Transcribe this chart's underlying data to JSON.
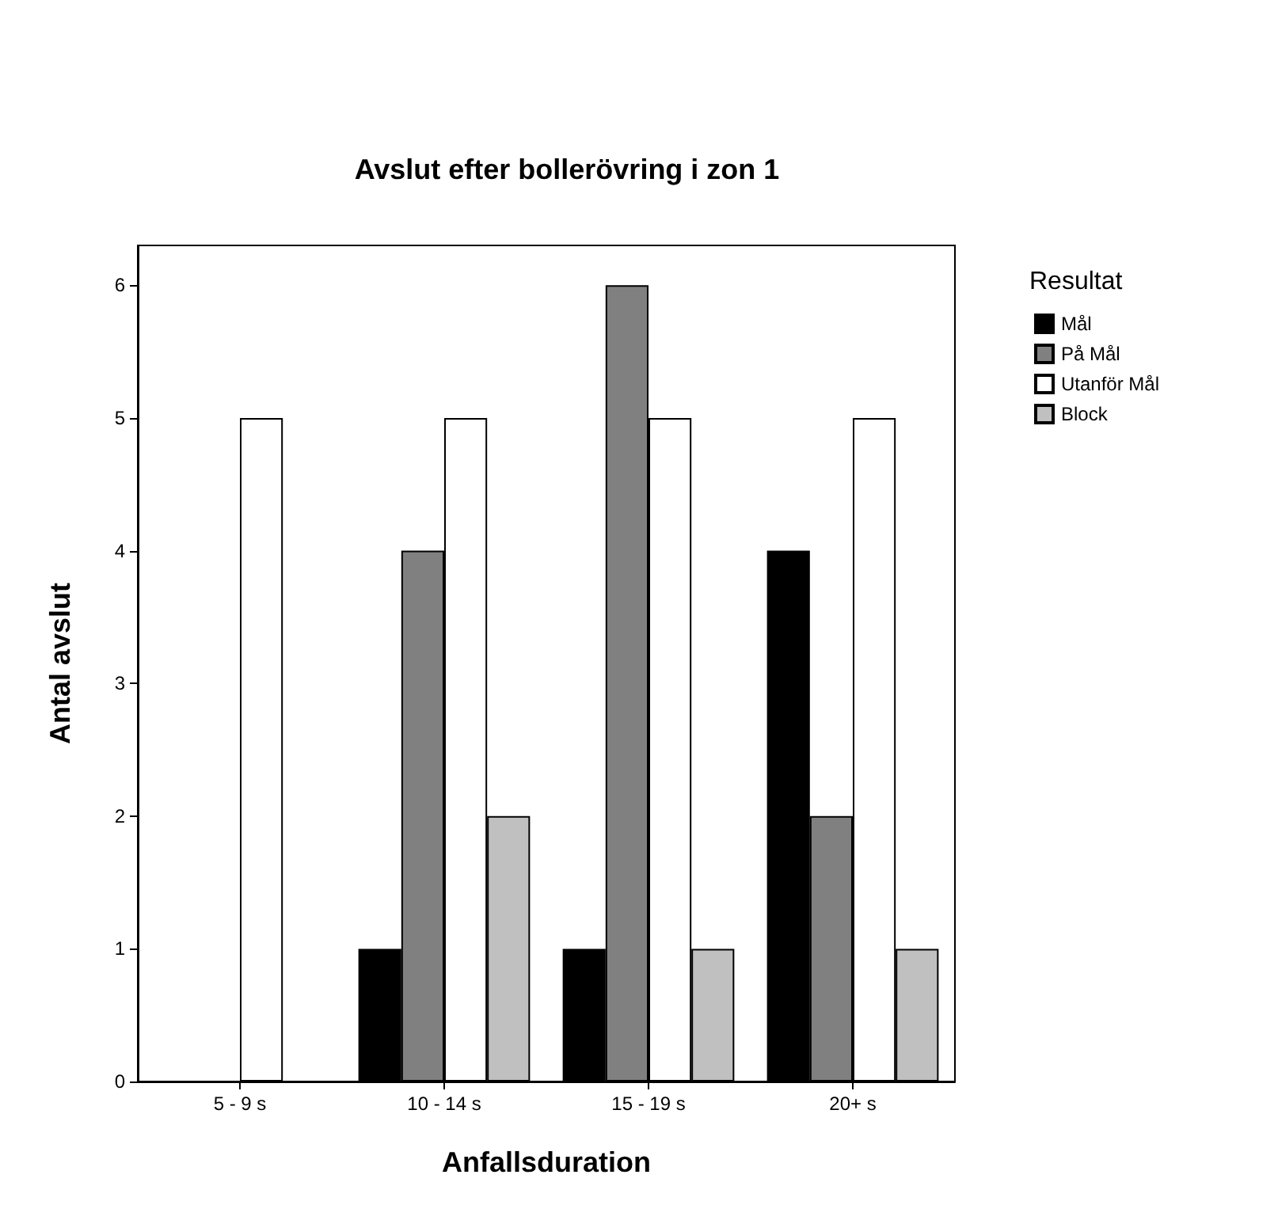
{
  "chart_data": {
    "type": "bar",
    "title": "Avslut efter bollerövring i zon 1",
    "xlabel": "Anfallsduration",
    "ylabel": "Antal avslut",
    "legend_title": "Resultat",
    "categories": [
      "5 - 9 s",
      "10 - 14 s",
      "15 - 19 s",
      "20+ s"
    ],
    "series": [
      {
        "name": "Mål",
        "color": "#000000",
        "values": [
          null,
          1,
          1,
          4
        ]
      },
      {
        "name": "På Mål",
        "color": "#808080",
        "values": [
          null,
          4,
          6,
          2
        ]
      },
      {
        "name": "Utanför Mål",
        "color": "#ffffff",
        "values": [
          5,
          5,
          5,
          5
        ]
      },
      {
        "name": "Block",
        "color": "#c0c0c0",
        "values": [
          null,
          2,
          1,
          1
        ]
      }
    ],
    "ylim": [
      0,
      6.3
    ],
    "yticks": [
      0,
      1,
      2,
      3,
      4,
      5,
      6
    ],
    "grid": false,
    "legend": "top right"
  }
}
